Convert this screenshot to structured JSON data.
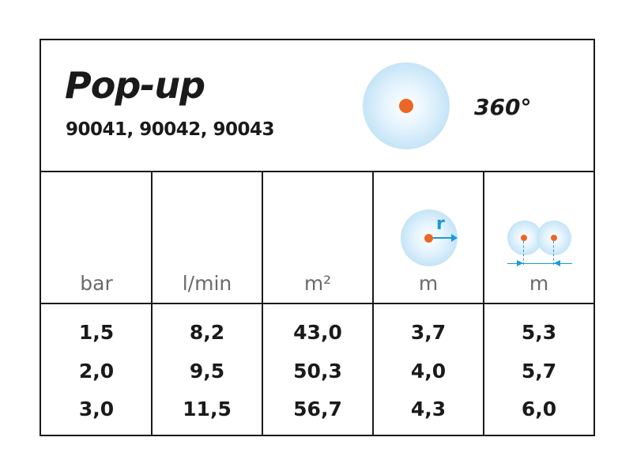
{
  "header": {
    "title": "Pop-up",
    "codes": "90041, 90042, 90043",
    "angle": "360°",
    "radius_label": "r"
  },
  "icons": {
    "spray": "spray-circle-icon",
    "radius": "radius-icon",
    "spacing": "spacing-icon"
  },
  "colors": {
    "dot": "#ec6624",
    "water": "#a9d7f3",
    "arrow": "#1a9ad6"
  },
  "table": {
    "units": [
      "bar",
      "l/min",
      "m²",
      "m",
      "m"
    ],
    "rows": [
      [
        "1,5",
        "8,2",
        "43,0",
        "3,7",
        "5,3"
      ],
      [
        "2,0",
        "9,5",
        "50,3",
        "4,0",
        "5,7"
      ],
      [
        "3,0",
        "11,5",
        "56,7",
        "4,3",
        "6,0"
      ]
    ]
  }
}
